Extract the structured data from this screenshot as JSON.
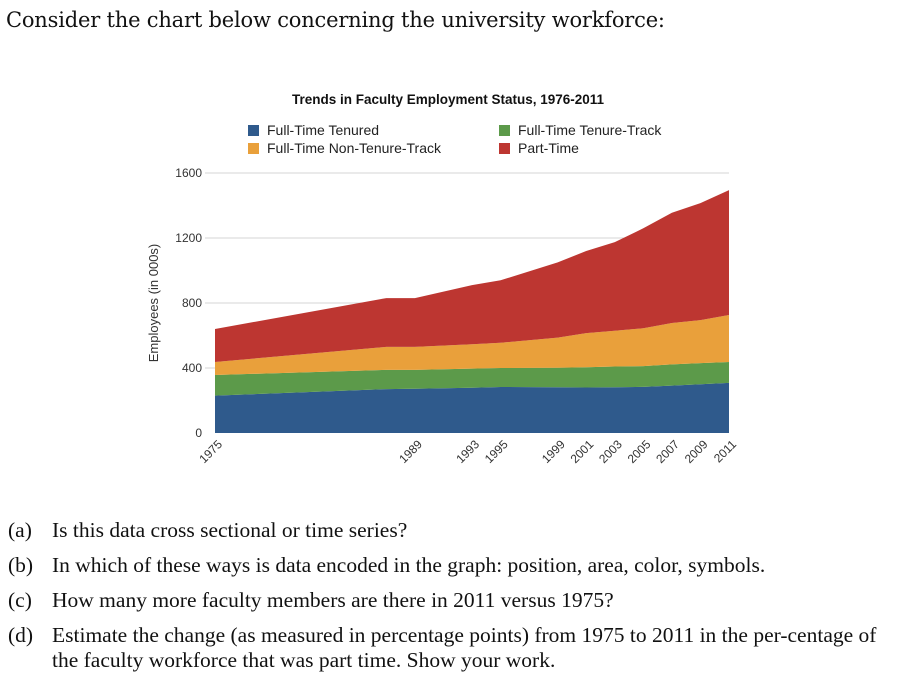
{
  "intro_text": "Consider the chart below concerning the university workforce:",
  "questions": [
    {
      "label": "(a)",
      "text": "Is this data cross sectional or time series?"
    },
    {
      "label": "(b)",
      "text": "In which of these ways is data encoded in the graph: position, area, color, symbols."
    },
    {
      "label": "(c)",
      "text": "How many more faculty members are there in 2011 versus 1975?"
    },
    {
      "label": "(d)",
      "text": "Estimate the change (as measured in percentage points) from 1975 to 2011 in the per-centage of the faculty workforce that was part time. Show your work."
    }
  ],
  "chart_data": {
    "type": "area",
    "stacked": true,
    "title": "Trends in Faculty Employment Status, 1976-2011",
    "xlabel": "",
    "ylabel": "Employees (in 000s)",
    "ylim": [
      0,
      1600
    ],
    "yticks": [
      0,
      400,
      800,
      1200,
      1600
    ],
    "xlim": [
      1975,
      2011
    ],
    "xtick_labels": [
      "1975",
      "1989",
      "1993",
      "1995",
      "1999",
      "2001",
      "2003",
      "2005",
      "2007",
      "2009",
      "2011"
    ],
    "grid": true,
    "legend_position": "top",
    "x": [
      1975,
      1987,
      1989,
      1993,
      1995,
      1999,
      2001,
      2003,
      2005,
      2007,
      2009,
      2011
    ],
    "series": [
      {
        "name": "Full-Time Tenured",
        "color": "#2f5a8c",
        "values": [
          230,
          270,
          272,
          278,
          283,
          282,
          280,
          282,
          284,
          292,
          300,
          308
        ]
      },
      {
        "name": "Full-Time Tenure-Track",
        "color": "#5c9a4a",
        "values": [
          127,
          118,
          116,
          118,
          117,
          120,
          125,
          127,
          128,
          130,
          130,
          129
        ]
      },
      {
        "name": "Full-Time Non-Tenure-Track",
        "color": "#e9a03b",
        "values": [
          80,
          142,
          142,
          150,
          155,
          185,
          210,
          220,
          233,
          255,
          265,
          289
        ]
      },
      {
        "name": "Part-Time",
        "color": "#bd3631",
        "values": [
          203,
          300,
          300,
          364,
          385,
          463,
          505,
          546,
          615,
          678,
          720,
          769
        ]
      }
    ],
    "legend_order": [
      "Full-Time Tenured",
      "Full-Time Tenure-Track",
      "Full-Time Non-Tenure-Track",
      "Part-Time"
    ]
  }
}
